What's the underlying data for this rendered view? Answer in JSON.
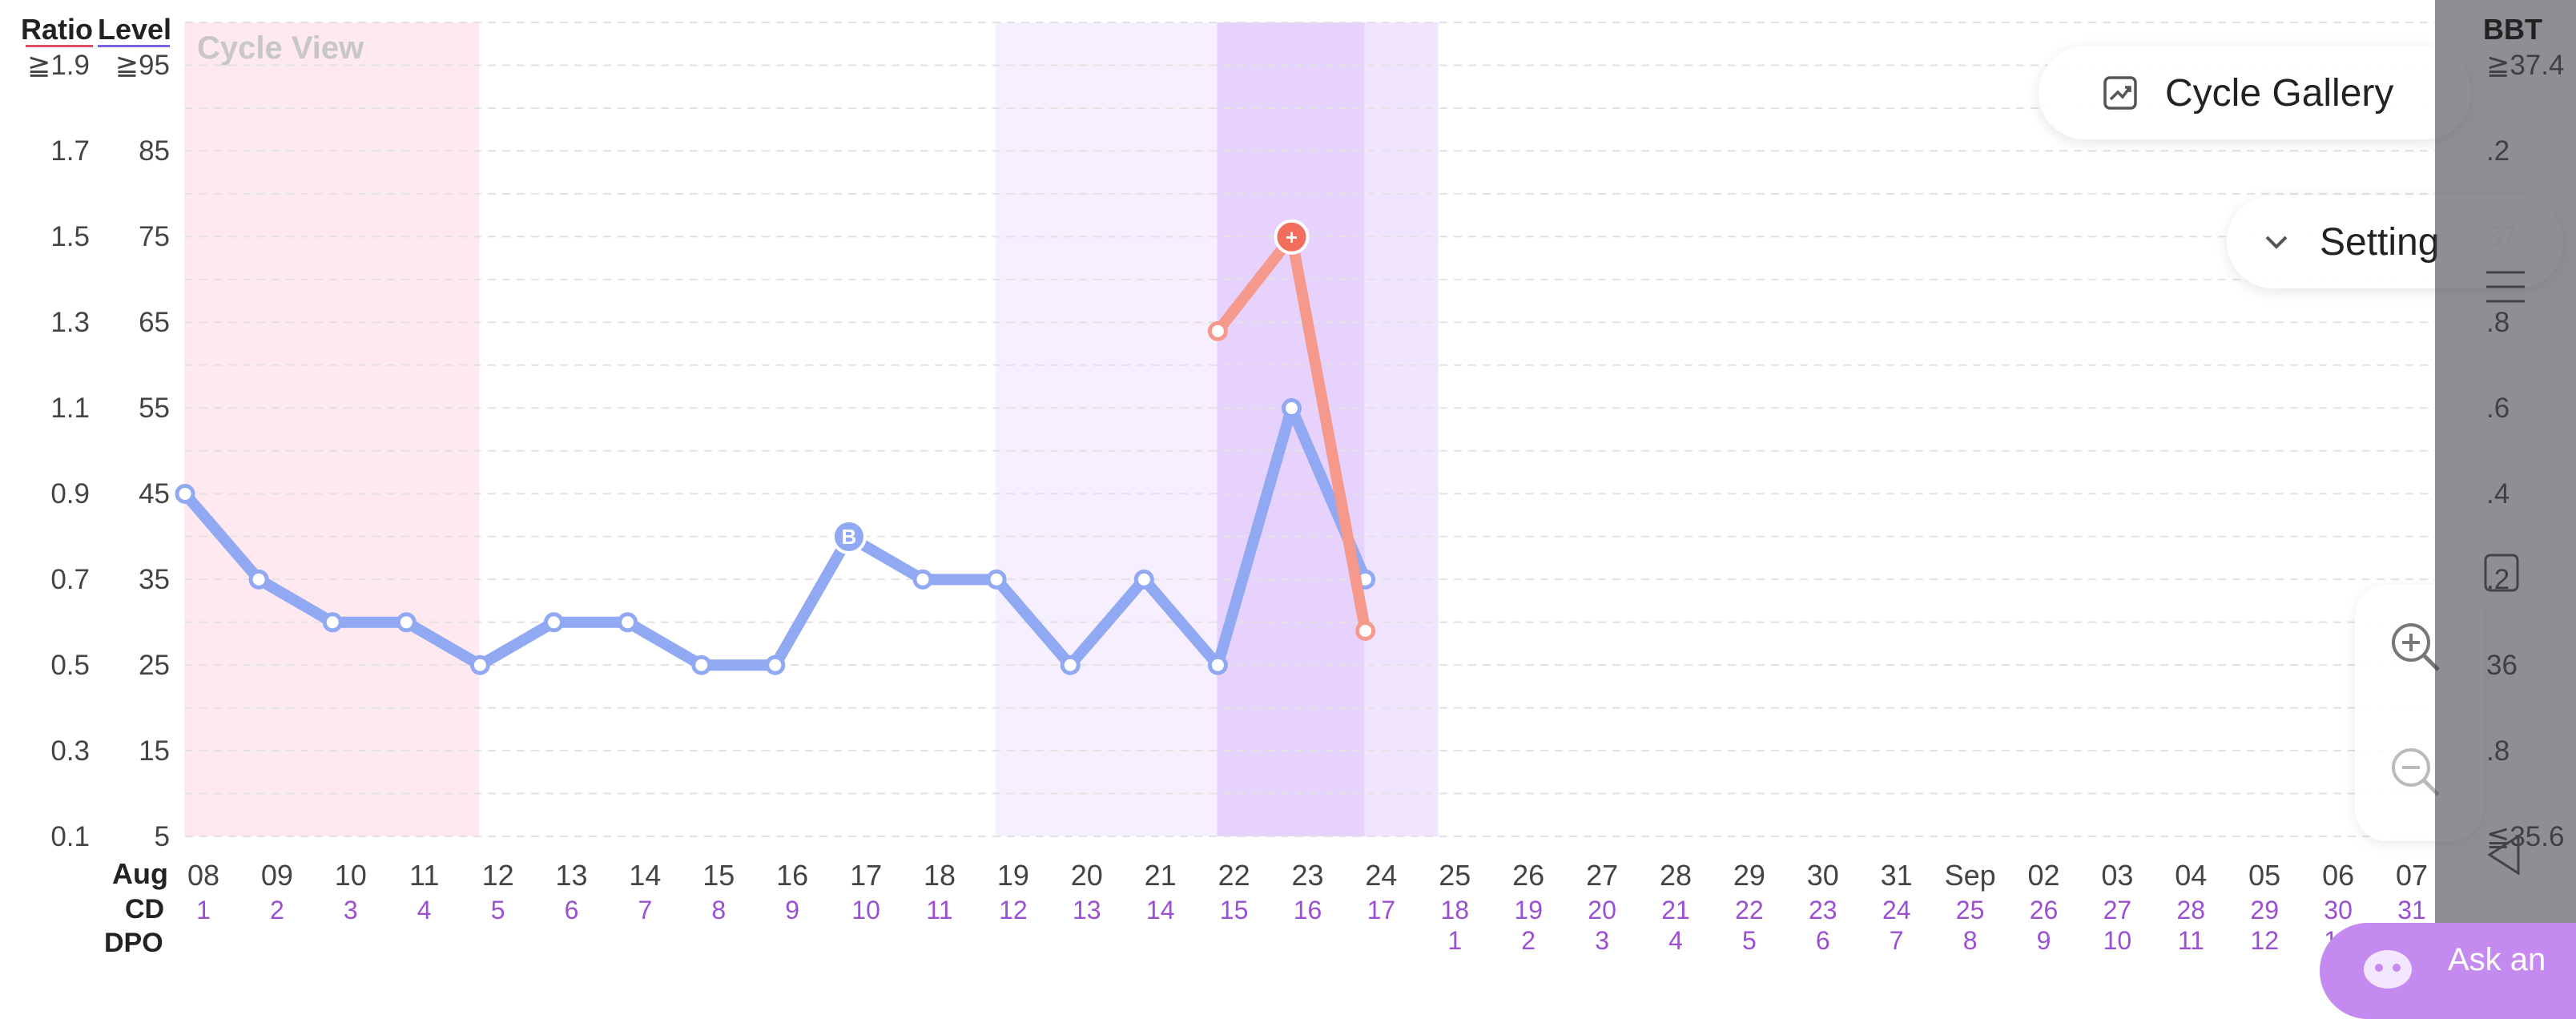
{
  "header": {
    "ratio": "Ratio",
    "level": "Level",
    "bbt": "BBT",
    "cycle_view": "Cycle View"
  },
  "y_ratio": [
    "≧1.9",
    "1.7",
    "1.5",
    "1.3",
    "1.1",
    "0.9",
    "0.7",
    "0.5",
    "0.3",
    "0.1"
  ],
  "y_level": [
    "≧95",
    "85",
    "75",
    "65",
    "55",
    "45",
    "35",
    "25",
    "15",
    "5"
  ],
  "y_bbt": [
    "≧37.4",
    ".2",
    "37",
    ".8",
    ".6",
    ".4",
    ".2",
    "36",
    ".8",
    "≦35.6"
  ],
  "row_labels": {
    "month": "Aug",
    "cd": "CD",
    "dpo": "DPO"
  },
  "dates": [
    "08",
    "09",
    "10",
    "11",
    "12",
    "13",
    "14",
    "15",
    "16",
    "17",
    "18",
    "19",
    "20",
    "21",
    "22",
    "23",
    "24",
    "25",
    "26",
    "27",
    "28",
    "29",
    "30",
    "31",
    "Sep",
    "02",
    "03",
    "04",
    "05",
    "06",
    "07"
  ],
  "cd": [
    "1",
    "2",
    "3",
    "4",
    "5",
    "6",
    "7",
    "8",
    "9",
    "10",
    "11",
    "12",
    "13",
    "14",
    "15",
    "16",
    "17",
    "18",
    "19",
    "20",
    "21",
    "22",
    "23",
    "24",
    "25",
    "26",
    "27",
    "28",
    "29",
    "30",
    "31"
  ],
  "dpo": [
    "",
    "",
    "",
    "",
    "",
    "",
    "",
    "",
    "",
    "",
    "",
    "",
    "",
    "",
    "",
    "",
    "",
    "1",
    "2",
    "3",
    "4",
    "5",
    "6",
    "7",
    "8",
    "9",
    "10",
    "11",
    "12",
    "13",
    ""
  ],
  "buttons": {
    "cycle_gallery": "Cycle Gallery",
    "setting": "Setting",
    "ask": "Ask an"
  },
  "chart_data": {
    "type": "line",
    "categories": [
      "08",
      "09",
      "10",
      "11",
      "12",
      "13",
      "14",
      "15",
      "16",
      "17",
      "18",
      "19",
      "20",
      "21",
      "22",
      "23",
      "24"
    ],
    "ylim": [
      5,
      95
    ],
    "series": [
      {
        "values": [
          45,
          35,
          30,
          30,
          25,
          30,
          30,
          25,
          25,
          40,
          35,
          35,
          25,
          35,
          25,
          55,
          35
        ],
        "color": "#91a8f2"
      },
      {
        "values": [
          null,
          null,
          null,
          null,
          null,
          null,
          null,
          null,
          null,
          null,
          null,
          null,
          null,
          null,
          64,
          75,
          29
        ],
        "color": "#f5998c"
      }
    ],
    "markers": [
      {
        "series": 0,
        "index": 9,
        "label": "B"
      },
      {
        "series": 1,
        "index": 15,
        "label": "+"
      }
    ],
    "shaded_ranges": [
      {
        "from": 0,
        "to": 3,
        "color": "#fde9ef"
      },
      {
        "from": 11,
        "to": 13,
        "color": "#f6efff"
      },
      {
        "from": 14,
        "to": 15,
        "color": "#e6d2fd"
      },
      {
        "from": 16,
        "to": 16,
        "color": "#f0e4ff"
      }
    ],
    "grid": true
  }
}
